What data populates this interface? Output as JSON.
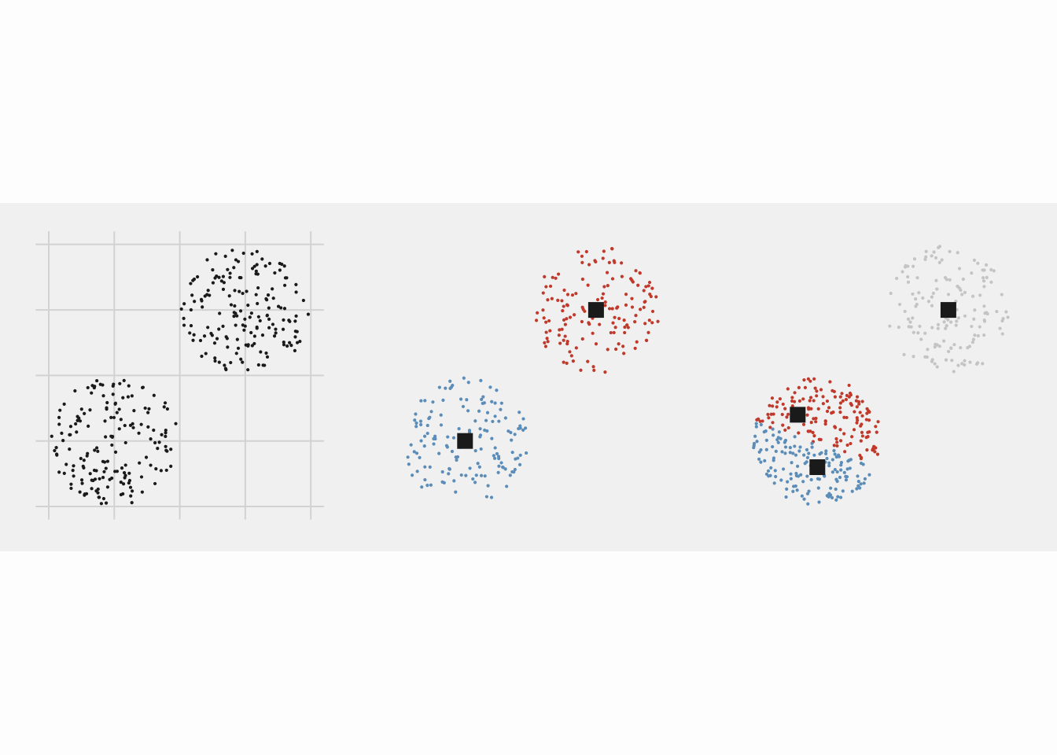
{
  "colors": {
    "background": "#f0f0f0",
    "grid": "#d2d2d2",
    "points_unassigned": "#1a1a1a",
    "cluster_red": "#c0392b",
    "cluster_blue": "#5b8db8",
    "cluster_grey": "#c4c4c4",
    "centroid": "#1a1a1a"
  },
  "chart_data": [
    {
      "type": "scatter",
      "panel": "raw-data",
      "grid": true,
      "axis_ticks_labeled": false,
      "xlim": [
        -0.2,
        4.2
      ],
      "ylim": [
        -0.2,
        4.2
      ],
      "blobs": [
        {
          "center": [
            1,
            1
          ],
          "radius": 0.98,
          "n": 170
        },
        {
          "center": [
            3,
            3
          ],
          "radius": 0.98,
          "n": 170
        }
      ]
    },
    {
      "type": "scatter",
      "panel": "k-means-correct",
      "grid": false,
      "xlim": [
        -0.2,
        4.2
      ],
      "ylim": [
        -0.2,
        4.2
      ],
      "clusters": [
        {
          "color": "cluster_red",
          "center": [
            3,
            3
          ],
          "radius": 0.98,
          "n": 150,
          "centroid": [
            3.0,
            3.0
          ]
        },
        {
          "color": "cluster_blue",
          "center": [
            1,
            1
          ],
          "radius": 0.98,
          "n": 150,
          "centroid": [
            1.0,
            1.0
          ]
        }
      ]
    },
    {
      "type": "scatter",
      "panel": "k-means-bad-init",
      "grid": false,
      "xlim": [
        -0.2,
        4.2
      ],
      "ylim": [
        -0.2,
        4.2
      ],
      "clusters": [
        {
          "color": "cluster_grey",
          "center": [
            3,
            3
          ],
          "radius": 0.98,
          "n": 150,
          "centroid": [
            3.0,
            3.0
          ]
        },
        {
          "color": "cluster_red",
          "center": [
            1,
            1
          ],
          "radius": 0.98,
          "n": 150,
          "centroid": [
            0.7,
            1.4
          ],
          "split": "top"
        },
        {
          "color": "cluster_blue",
          "center": [
            1,
            1
          ],
          "radius": 0.98,
          "n": 150,
          "centroid": [
            1.0,
            0.6
          ],
          "split": "bottom"
        }
      ]
    }
  ]
}
